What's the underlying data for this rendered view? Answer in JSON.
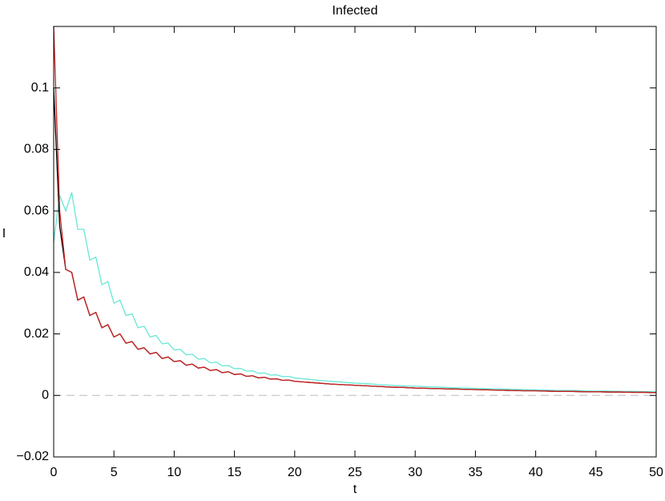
{
  "chart_data": {
    "type": "line",
    "title": "Infected",
    "x_label": "t",
    "y_label": "I",
    "x": [
      0,
      0.5,
      1,
      1.5,
      2,
      2.5,
      3,
      3.5,
      4,
      4.5,
      5,
      5.5,
      6,
      6.5,
      7,
      7.5,
      8,
      8.5,
      9,
      9.5,
      10,
      10.5,
      11,
      11.5,
      12,
      12.5,
      13,
      13.5,
      14,
      14.5,
      15,
      15.5,
      16,
      16.5,
      17,
      17.5,
      18,
      18.5,
      19,
      19.5,
      20,
      21,
      22,
      23,
      24,
      25,
      26,
      27,
      28,
      29,
      30,
      31,
      32,
      33,
      34,
      35,
      36,
      37,
      38,
      39,
      40,
      41,
      42,
      43,
      44,
      45,
      46,
      47,
      48,
      49,
      50
    ],
    "series": [
      {
        "color": "#66e8d4",
        "values": [
          0.05,
          0.065,
          0.06,
          0.066,
          0.054,
          0.054,
          0.044,
          0.045,
          0.036,
          0.037,
          0.03,
          0.031,
          0.026,
          0.0265,
          0.022,
          0.0225,
          0.019,
          0.0195,
          0.0168,
          0.017,
          0.0148,
          0.015,
          0.0132,
          0.0134,
          0.0118,
          0.012,
          0.0106,
          0.0108,
          0.0096,
          0.0097,
          0.0087,
          0.0088,
          0.0079,
          0.008,
          0.0072,
          0.0073,
          0.0066,
          0.0067,
          0.0061,
          0.0062,
          0.0057,
          0.0053,
          0.0049,
          0.0046,
          0.0043,
          0.004,
          0.0038,
          0.0035,
          0.0033,
          0.0031,
          0.003,
          0.0028,
          0.0027,
          0.0025,
          0.0024,
          0.0023,
          0.0022,
          0.0021,
          0.002,
          0.0019,
          0.0018,
          0.0017,
          0.0016,
          0.0016,
          0.0015,
          0.0014,
          0.0014,
          0.0013,
          0.0013,
          0.0012,
          0.0012
        ]
      },
      {
        "color": "#000000",
        "values": [
          0.1,
          0.055,
          0.041,
          0.04,
          0.031,
          0.032,
          0.026,
          0.027,
          0.022,
          0.023,
          0.019,
          0.02,
          0.017,
          0.0175,
          0.015,
          0.0155,
          0.0135,
          0.014,
          0.012,
          0.0125,
          0.011,
          0.0113,
          0.0098,
          0.0102,
          0.0089,
          0.0092,
          0.0081,
          0.0084,
          0.0074,
          0.0077,
          0.0068,
          0.007,
          0.0062,
          0.0064,
          0.0057,
          0.0059,
          0.0053,
          0.0054,
          0.0049,
          0.005,
          0.0046,
          0.0043,
          0.004,
          0.0037,
          0.0035,
          0.0033,
          0.0031,
          0.0029,
          0.0027,
          0.0026,
          0.0024,
          0.0023,
          0.0022,
          0.0021,
          0.002,
          0.0019,
          0.0018,
          0.0017,
          0.0016,
          0.0015,
          0.0015,
          0.0014,
          0.0013,
          0.0013,
          0.0012,
          0.0012,
          0.0011,
          0.0011,
          0.001,
          0.001,
          0.0009
        ]
      },
      {
        "color": "#cc2222",
        "values": [
          0.12,
          0.06,
          0.041,
          0.04,
          0.031,
          0.032,
          0.026,
          0.027,
          0.022,
          0.023,
          0.019,
          0.02,
          0.017,
          0.0175,
          0.015,
          0.0155,
          0.0135,
          0.014,
          0.012,
          0.0125,
          0.011,
          0.0113,
          0.0098,
          0.0102,
          0.0089,
          0.0092,
          0.0081,
          0.0084,
          0.0074,
          0.0077,
          0.0068,
          0.007,
          0.0062,
          0.0064,
          0.0057,
          0.0059,
          0.0053,
          0.0054,
          0.0049,
          0.005,
          0.0046,
          0.0043,
          0.004,
          0.0037,
          0.0035,
          0.0033,
          0.0031,
          0.0029,
          0.0027,
          0.0026,
          0.0024,
          0.0023,
          0.0022,
          0.0021,
          0.002,
          0.0019,
          0.0018,
          0.0017,
          0.0016,
          0.0015,
          0.0015,
          0.0014,
          0.0013,
          0.0013,
          0.0012,
          0.0012,
          0.0011,
          0.0011,
          0.001,
          0.001,
          0.0009
        ]
      }
    ],
    "reference_line": 0,
    "xlim": [
      0,
      50
    ],
    "xticks": [
      0,
      5,
      10,
      15,
      20,
      25,
      30,
      35,
      40,
      45,
      50
    ],
    "ylim": [
      -0.02,
      0.12
    ],
    "yticks": [
      {
        "value": -0.02,
        "label": "−0.02"
      },
      0,
      0.02,
      0.04,
      0.06,
      0.08,
      0.1
    ],
    "grid": false
  }
}
